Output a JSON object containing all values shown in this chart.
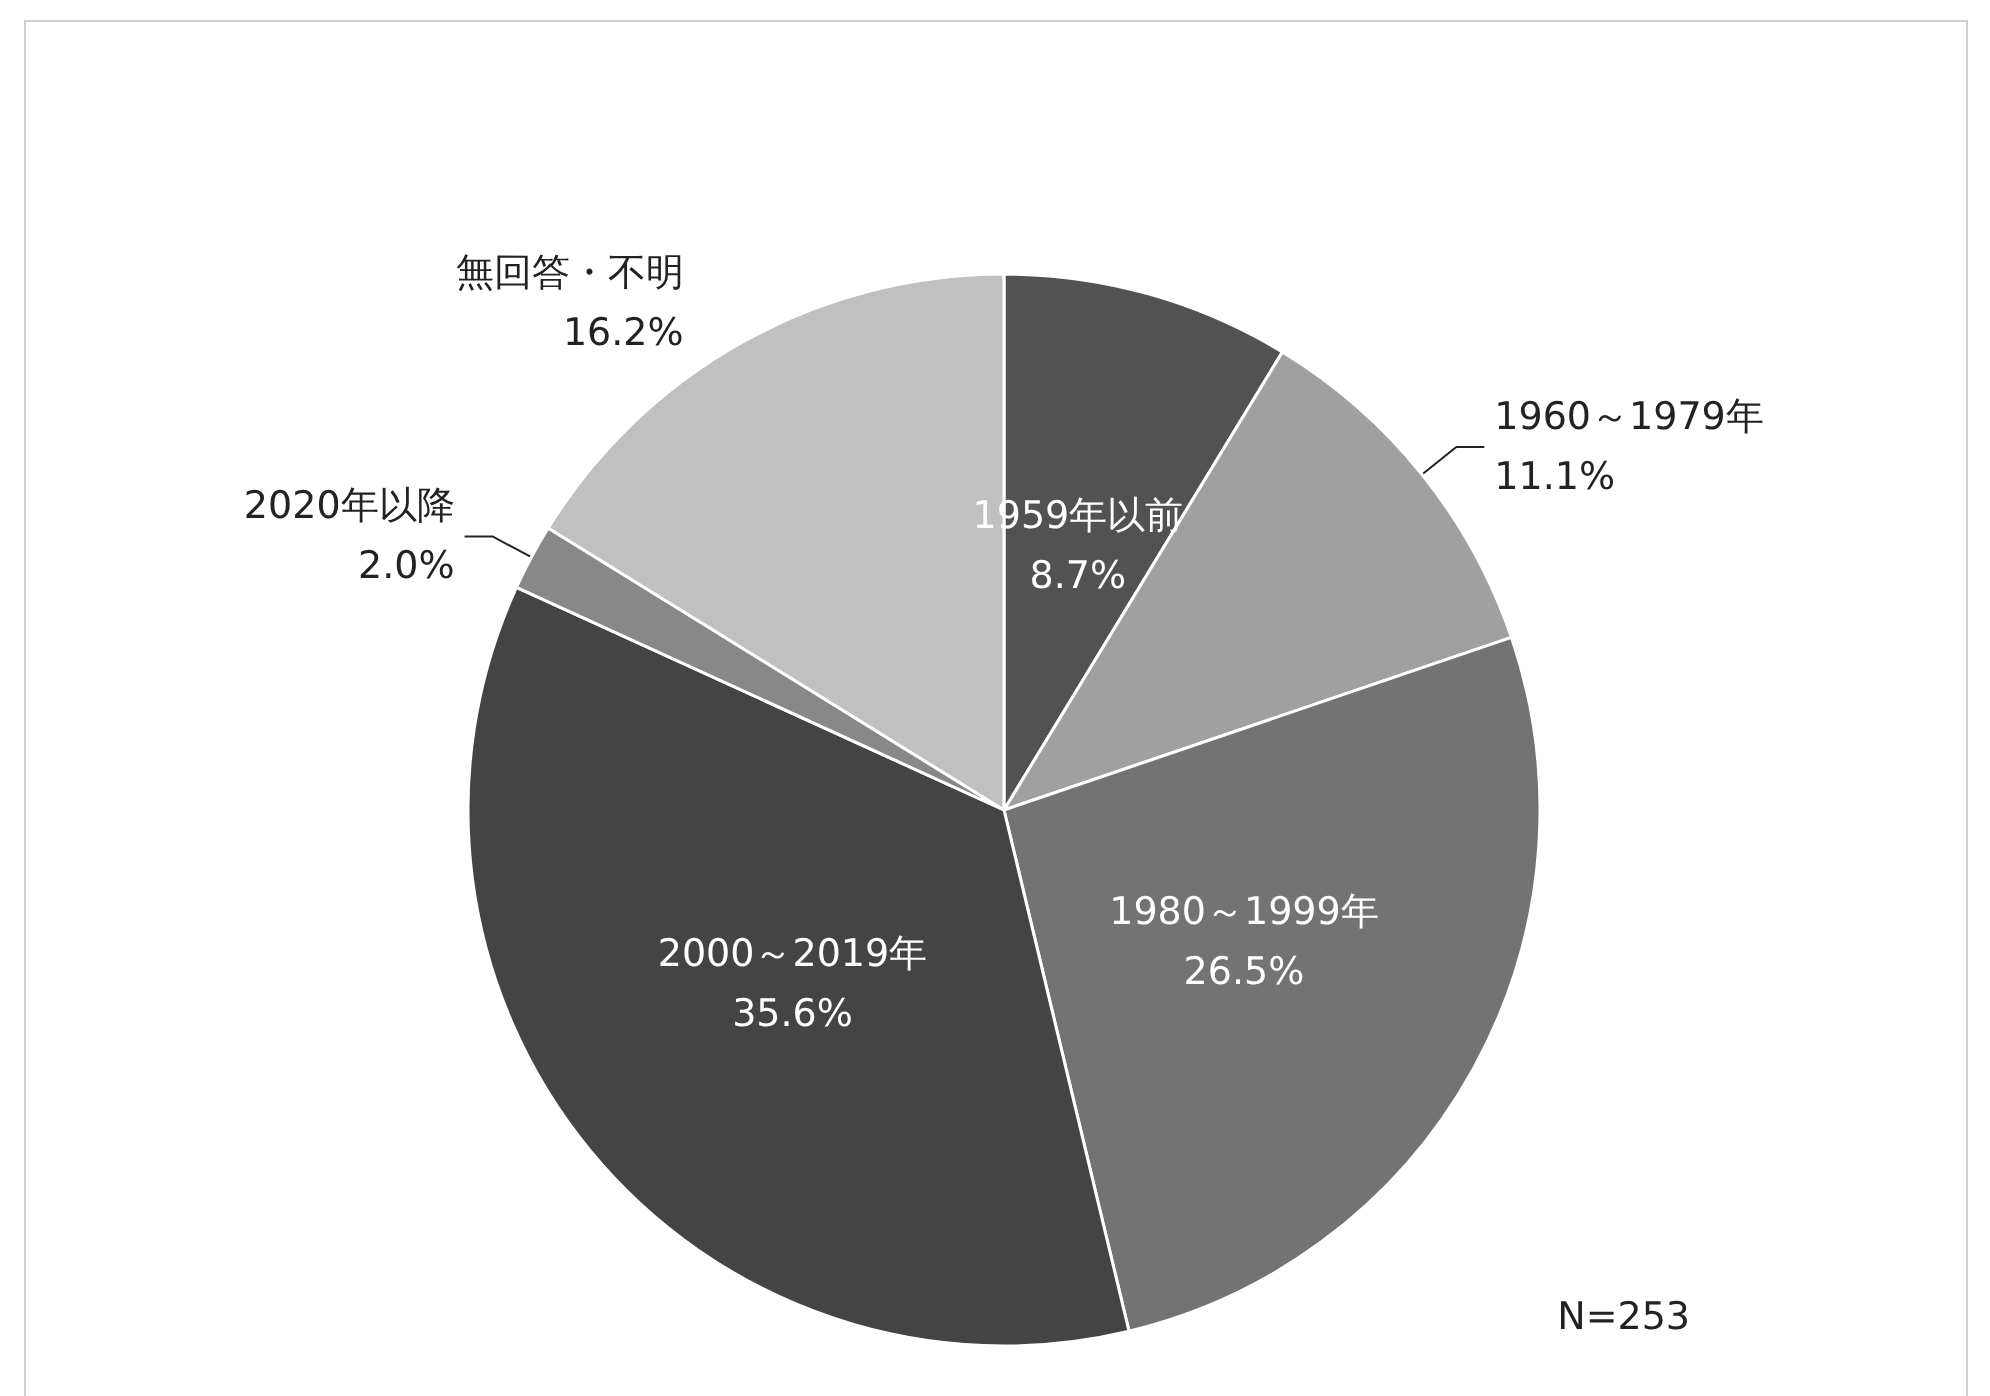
{
  "chart_data": {
    "type": "pie",
    "categories": [
      "1959年以前",
      "1960～1979年",
      "1980～1999年",
      "2000～2019年",
      "2020年以降",
      "無回答・不明"
    ],
    "values": [
      8.7,
      11.1,
      26.5,
      35.6,
      2.0,
      16.2
    ],
    "colors": [
      "#525252",
      "#a0a0a0",
      "#737373",
      "#444444",
      "#888888",
      "#c0c0c0"
    ],
    "value_labels": [
      "8.7%",
      "11.1%",
      "26.5%",
      "35.6%",
      "2.0%",
      "16.2%"
    ],
    "annotations": [
      "N=253"
    ]
  }
}
